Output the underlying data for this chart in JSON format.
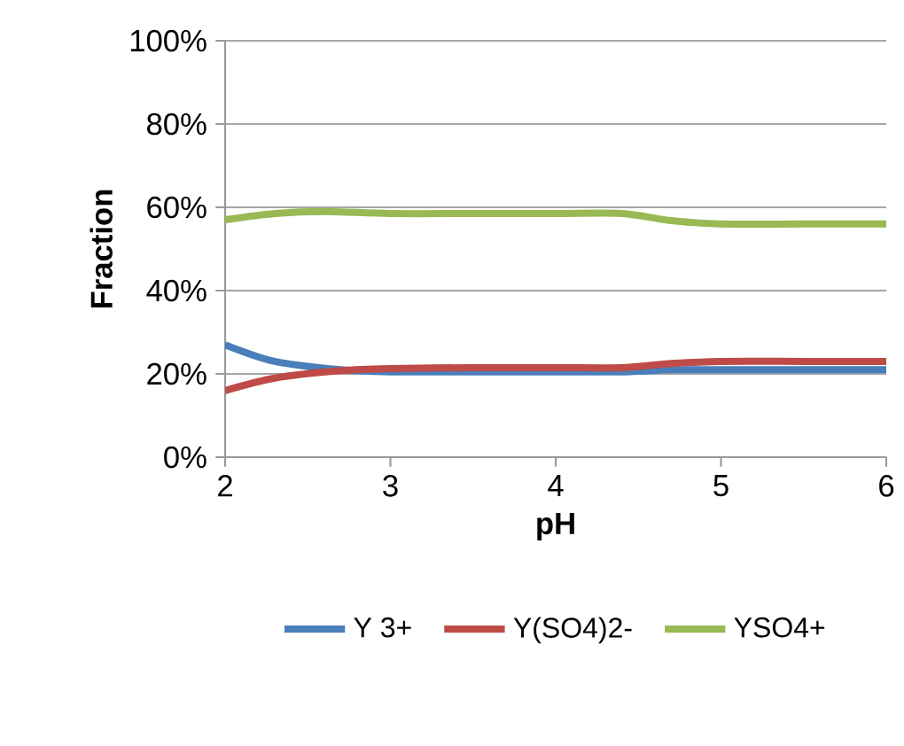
{
  "chart_data": {
    "type": "line",
    "xlabel": "pH",
    "ylabel": "Fraction",
    "xlim": [
      2,
      6
    ],
    "xticks": [
      2,
      3,
      4,
      5,
      6
    ],
    "ylim": [
      0,
      100
    ],
    "yticks": [
      {
        "value": 0,
        "label": "0%"
      },
      {
        "value": 20,
        "label": "20%"
      },
      {
        "value": 40,
        "label": "40%"
      },
      {
        "value": 60,
        "label": "60%"
      },
      {
        "value": 80,
        "label": "80%"
      },
      {
        "value": 100,
        "label": "100%"
      }
    ],
    "grid": "y",
    "legend": "bottom",
    "marker": "none",
    "line_style": "solid",
    "series": [
      {
        "name": "Y 3+",
        "color": "#4a7ebb",
        "x": [
          2,
          2.3,
          2.7,
          3,
          3.5,
          4,
          4.4,
          4.7,
          5,
          5.5,
          6
        ],
        "values": [
          27,
          23,
          21,
          20.5,
          20.5,
          20.5,
          20.5,
          21,
          21,
          21,
          21
        ]
      },
      {
        "name": "Y(SO4)2-",
        "color": "#be4b48",
        "x": [
          2,
          2.3,
          2.7,
          3,
          3.5,
          4,
          4.4,
          4.7,
          5,
          5.5,
          6
        ],
        "values": [
          16,
          19,
          20.8,
          21.3,
          21.5,
          21.5,
          21.5,
          22.5,
          23,
          23,
          23
        ]
      },
      {
        "name": "YSO4+",
        "color": "#98b954",
        "x": [
          2,
          2.3,
          2.6,
          3,
          3.5,
          4,
          4.4,
          4.7,
          5,
          5.5,
          6
        ],
        "values": [
          57,
          58.5,
          59,
          58.5,
          58.5,
          58.5,
          58.5,
          56.8,
          56,
          56,
          56
        ]
      }
    ]
  }
}
